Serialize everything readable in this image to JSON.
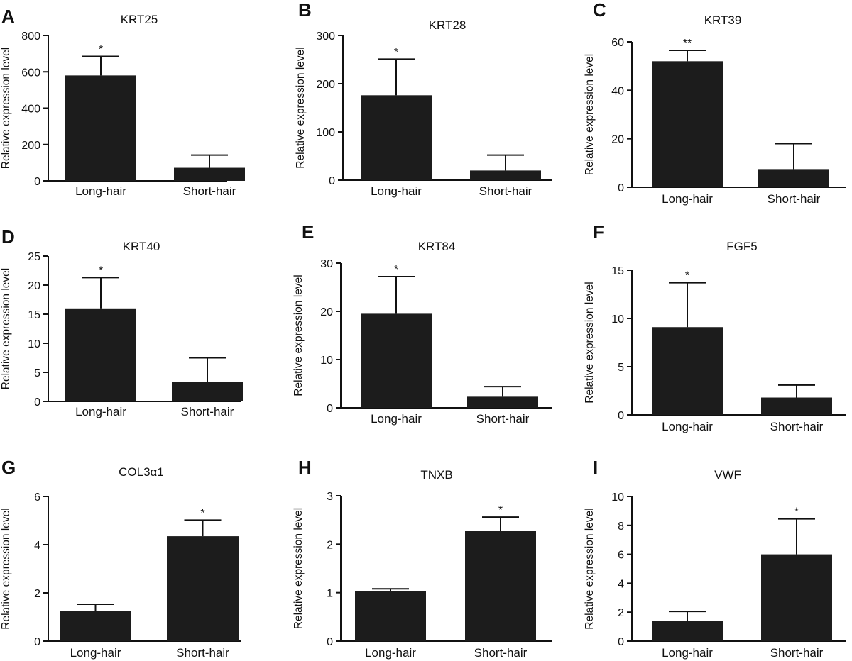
{
  "colors": {
    "bar": "#1c1c1c",
    "axis": "#111111",
    "background": "#ffffff"
  },
  "chart_data": [
    {
      "type": "bar",
      "panel": "A",
      "title": "KRT25",
      "ylabel": "Relative expression level",
      "xlabel": "",
      "categories": [
        "Long-hair",
        "Short-hair"
      ],
      "values": [
        580,
        72
      ],
      "errors": [
        105,
        70
      ],
      "ylim": [
        0,
        800
      ],
      "yticks": [
        "0",
        "200",
        "400",
        "600",
        "800"
      ],
      "significance": [
        "*",
        ""
      ]
    },
    {
      "type": "bar",
      "panel": "B",
      "title": "KRT28",
      "ylabel": "Relative expression level",
      "xlabel": "",
      "categories": [
        "Long-hair",
        "Short-hair"
      ],
      "values": [
        176,
        20
      ],
      "errors": [
        75,
        32
      ],
      "ylim": [
        0,
        300
      ],
      "yticks": [
        "0",
        "100",
        "200",
        "300"
      ],
      "significance": [
        "*",
        ""
      ]
    },
    {
      "type": "bar",
      "panel": "C",
      "title": "KRT39",
      "ylabel": "Relative expression level",
      "xlabel": "",
      "categories": [
        "Long-hair",
        "Short-hair"
      ],
      "values": [
        52,
        7.5
      ],
      "errors": [
        4.5,
        10.5
      ],
      "ylim": [
        0,
        60
      ],
      "yticks": [
        "0",
        "20",
        "40",
        "60"
      ],
      "significance": [
        "**",
        ""
      ]
    },
    {
      "type": "bar",
      "panel": "D",
      "title": "KRT40",
      "ylabel": "Relative expression level",
      "xlabel": "",
      "categories": [
        "Long-hair",
        "Short-hair"
      ],
      "values": [
        16,
        3.4
      ],
      "errors": [
        5.3,
        4.1
      ],
      "ylim": [
        0,
        25
      ],
      "yticks": [
        "0",
        "5",
        "10",
        "15",
        "20",
        "25"
      ],
      "significance": [
        "*",
        ""
      ]
    },
    {
      "type": "bar",
      "panel": "E",
      "title": "KRT84",
      "ylabel": "Relative expression level",
      "xlabel": "",
      "categories": [
        "Long-hair",
        "Short-hair"
      ],
      "values": [
        19.5,
        2.3
      ],
      "errors": [
        7.7,
        2.1
      ],
      "ylim": [
        0,
        30
      ],
      "yticks": [
        "0",
        "10",
        "20",
        "30"
      ],
      "significance": [
        "*",
        ""
      ]
    },
    {
      "type": "bar",
      "panel": "F",
      "title": "FGF5",
      "ylabel": "Relative expression level",
      "xlabel": "",
      "categories": [
        "Long-hair",
        "Short-hair"
      ],
      "values": [
        9.1,
        1.8
      ],
      "errors": [
        4.6,
        1.3
      ],
      "ylim": [
        0,
        15
      ],
      "yticks": [
        "0",
        "5",
        "10",
        "15"
      ],
      "significance": [
        "*",
        ""
      ]
    },
    {
      "type": "bar",
      "panel": "G",
      "title": "COL3α1",
      "ylabel": "Relative expression level",
      "xlabel": "",
      "categories": [
        "Long-hair",
        "Short-hair"
      ],
      "values": [
        1.25,
        4.35
      ],
      "errors": [
        0.28,
        0.67
      ],
      "ylim": [
        0,
        6
      ],
      "yticks": [
        "0",
        "2",
        "4",
        "6"
      ],
      "significance": [
        "",
        "*"
      ]
    },
    {
      "type": "bar",
      "panel": "H",
      "title": "TNXB",
      "ylabel": "Relative expression level",
      "xlabel": "",
      "categories": [
        "Long-hair",
        "Short-hair"
      ],
      "values": [
        1.03,
        2.28
      ],
      "errors": [
        0.05,
        0.28
      ],
      "ylim": [
        0,
        3
      ],
      "yticks": [
        "0",
        "1",
        "2",
        "3"
      ],
      "significance": [
        "",
        "*"
      ]
    },
    {
      "type": "bar",
      "panel": "I",
      "title": "VWF",
      "ylabel": "Relative expression level",
      "xlabel": "",
      "categories": [
        "Long-hair",
        "Short-hair"
      ],
      "values": [
        1.4,
        6.0
      ],
      "errors": [
        0.65,
        2.45
      ],
      "ylim": [
        0,
        10
      ],
      "yticks": [
        "0",
        "2",
        "4",
        "6",
        "8",
        "10"
      ],
      "significance": [
        "",
        "*"
      ]
    }
  ]
}
